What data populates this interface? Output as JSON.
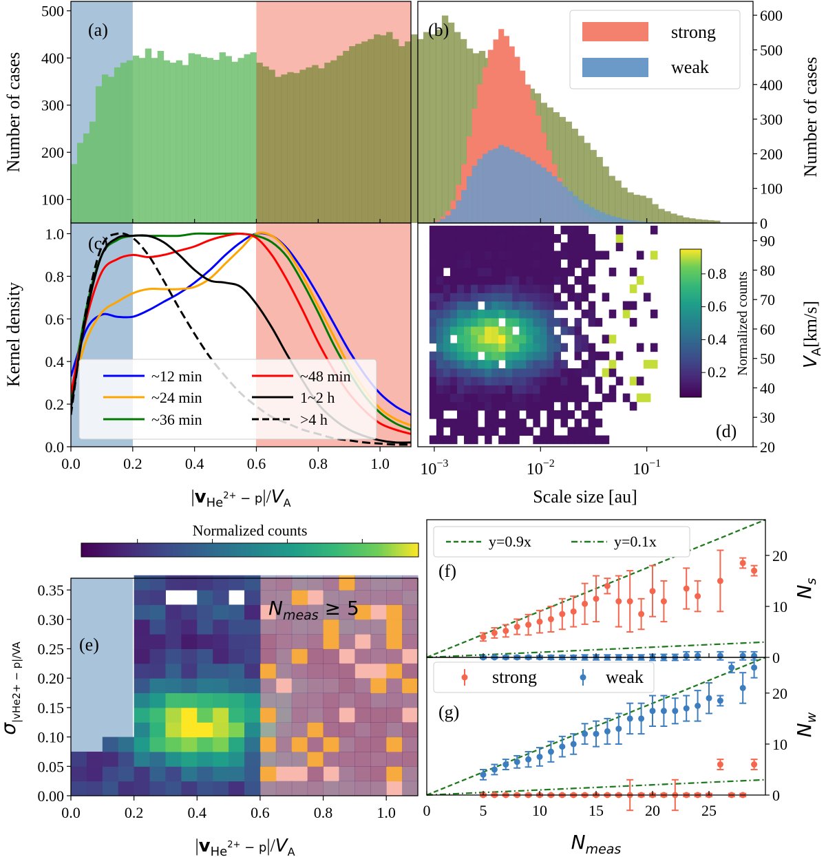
{
  "chart_data": [
    {
      "panel": "(a)",
      "type": "bar",
      "ylabel": "Number of cases",
      "ylim": [
        50,
        520
      ],
      "xlim": [
        0.0,
        1.1
      ],
      "yticks": [
        "100",
        "200",
        "300",
        "400",
        "500"
      ],
      "bin_width": 0.02,
      "shaded_regions": [
        {
          "name": "weak",
          "range": [
            0.0,
            0.2
          ],
          "color": "#a9c3da"
        },
        {
          "name": "strong",
          "range": [
            0.6,
            1.1
          ],
          "color": "#f9b8ad"
        }
      ],
      "values": [
        175,
        220,
        240,
        265,
        340,
        365,
        360,
        380,
        390,
        395,
        405,
        400,
        420,
        400,
        415,
        395,
        390,
        395,
        385,
        410,
        408,
        402,
        400,
        396,
        412,
        404,
        392,
        400,
        408,
        412,
        390,
        382,
        375,
        360,
        365,
        370,
        368,
        375,
        380,
        385,
        378,
        390,
        395,
        405,
        415,
        425,
        430,
        435,
        440,
        450,
        448,
        455,
        440,
        425,
        435,
        450,
        440,
        455,
        450,
        460,
        490,
        475,
        455,
        440,
        420,
        410,
        415,
        400,
        390,
        380,
        370,
        360,
        350,
        340,
        335,
        325,
        305,
        295,
        285,
        275,
        265,
        250,
        235,
        220,
        205,
        190,
        170,
        150,
        140,
        125,
        115,
        110,
        108,
        103,
        90,
        80,
        75,
        70,
        66,
        62,
        60,
        58,
        57,
        56,
        55
      ]
    },
    {
      "panel": "(b)",
      "type": "bar",
      "ylabel": "Number of cases",
      "xlog": true,
      "xlim": [
        0.0007,
        1.0
      ],
      "ylim": [
        0,
        640
      ],
      "yticks": [
        "0",
        "100",
        "200",
        "300",
        "400",
        "500",
        "600"
      ],
      "legend": "top-right",
      "series": [
        {
          "name": "strong",
          "color": "#f4806e",
          "values": [
            2,
            8,
            18,
            35,
            65,
            110,
            170,
            250,
            330,
            400,
            450,
            500,
            530,
            560,
            540,
            510,
            480,
            440,
            400,
            355,
            310,
            260,
            210,
            170,
            130,
            100,
            80,
            58,
            40,
            28,
            18,
            12,
            7,
            4,
            2,
            1,
            1,
            0,
            0,
            0,
            0,
            0,
            0,
            0,
            0,
            0,
            0,
            0,
            0,
            0
          ]
        },
        {
          "name": "weak",
          "color": "#6b9ac8",
          "values": [
            2,
            5,
            12,
            22,
            40,
            65,
            95,
            135,
            165,
            185,
            200,
            210,
            215,
            225,
            220,
            212,
            205,
            198,
            190,
            180,
            170,
            160,
            148,
            135,
            120,
            105,
            92,
            78,
            66,
            55,
            46,
            38,
            31,
            25,
            20,
            16,
            12,
            9,
            7,
            5,
            4,
            3,
            2,
            2,
            1,
            1,
            0,
            0,
            0,
            0
          ]
        }
      ]
    },
    {
      "panel": "(c)",
      "type": "line",
      "ylabel": "Kernel density",
      "xlabel_parts": [
        "|",
        "v",
        "He",
        "2+",
        " − p",
        "|/",
        "V",
        "A"
      ],
      "xlim": [
        0.0,
        1.1
      ],
      "ylim": [
        0.0,
        1.05
      ],
      "xticks": [
        "0.0",
        "0.2",
        "0.4",
        "0.6",
        "0.8",
        "1.0"
      ],
      "yticks": [
        "0.0",
        "0.2",
        "0.4",
        "0.6",
        "0.8",
        "1.0"
      ],
      "x": [
        0.0,
        0.05,
        0.1,
        0.15,
        0.2,
        0.25,
        0.3,
        0.35,
        0.4,
        0.45,
        0.5,
        0.55,
        0.6,
        0.65,
        0.7,
        0.75,
        0.8,
        0.85,
        0.9,
        0.95,
        1.0,
        1.05,
        1.1
      ],
      "series": [
        {
          "name": "~12 min",
          "color": "#0000ff",
          "style": "solid",
          "values": [
            0.33,
            0.55,
            0.62,
            0.61,
            0.61,
            0.64,
            0.68,
            0.72,
            0.77,
            0.83,
            0.9,
            0.96,
            1.0,
            0.99,
            0.93,
            0.83,
            0.71,
            0.58,
            0.45,
            0.34,
            0.25,
            0.19,
            0.15
          ]
        },
        {
          "name": "~24 min",
          "color": "#ffa500",
          "style": "solid",
          "values": [
            0.25,
            0.5,
            0.63,
            0.68,
            0.72,
            0.74,
            0.74,
            0.74,
            0.75,
            0.79,
            0.86,
            0.93,
            1.0,
            0.99,
            0.92,
            0.8,
            0.66,
            0.52,
            0.38,
            0.27,
            0.18,
            0.13,
            0.1
          ]
        },
        {
          "name": "~36 min",
          "color": "#007a00",
          "style": "solid",
          "values": [
            0.23,
            0.65,
            0.9,
            0.97,
            0.99,
            0.99,
            0.99,
            0.99,
            1.0,
            1.0,
            1.0,
            1.0,
            0.99,
            0.96,
            0.89,
            0.77,
            0.63,
            0.48,
            0.35,
            0.24,
            0.16,
            0.11,
            0.08
          ]
        },
        {
          "name": "~48 min",
          "color": "#ff0000",
          "style": "solid",
          "values": [
            0.25,
            0.6,
            0.82,
            0.88,
            0.9,
            0.89,
            0.9,
            0.92,
            0.94,
            0.97,
            0.99,
            1.0,
            0.98,
            0.9,
            0.78,
            0.64,
            0.49,
            0.36,
            0.25,
            0.17,
            0.11,
            0.08,
            0.06
          ]
        },
        {
          "name": "1~2 h",
          "color": "#000000",
          "style": "solid",
          "values": [
            0.18,
            0.62,
            0.9,
            0.98,
            0.99,
            0.99,
            0.96,
            0.9,
            0.83,
            0.78,
            0.77,
            0.75,
            0.67,
            0.56,
            0.43,
            0.31,
            0.2,
            0.13,
            0.08,
            0.05,
            0.03,
            0.02,
            0.02
          ]
        },
        {
          "name": ">4 h",
          "color": "#000000",
          "style": "dashed",
          "values": [
            0.15,
            0.65,
            0.94,
            1.0,
            0.98,
            0.9,
            0.78,
            0.65,
            0.53,
            0.42,
            0.33,
            0.25,
            0.19,
            0.14,
            0.11,
            0.08,
            0.06,
            0.04,
            0.03,
            0.02,
            0.015,
            0.01,
            0.01
          ]
        }
      ],
      "legend": "lower-left"
    },
    {
      "panel": "(d)",
      "type": "heatmap",
      "xlabel": "Scale size [au]",
      "ylabel_parts": [
        "V",
        "A",
        "[km/s]"
      ],
      "xlog": true,
      "xlim": [
        0.0007,
        1.0
      ],
      "ylim": [
        20,
        96
      ],
      "yticks": [
        "20",
        "30",
        "40",
        "50",
        "60",
        "70",
        "80",
        "90"
      ],
      "xticks_base": "10",
      "xticks_exp": [
        "−3",
        "−2",
        "−1"
      ],
      "colorbar_label": "Normalized counts",
      "colorbar_ticks": [
        "0.2",
        "0.4",
        "0.6",
        "0.8"
      ],
      "description": "Normalized counts peak near scale size 0.002-0.006 au and V_A 50-65 km/s"
    },
    {
      "panel": "(e)",
      "type": "heatmap",
      "xlabel_parts": [
        "|",
        "v",
        "He",
        "2+",
        " − p",
        "|/",
        "V",
        "A"
      ],
      "ylabel_parts": [
        "σ",
        "|vHe2+ − p|/VA"
      ],
      "xlim": [
        0.0,
        1.1
      ],
      "ylim": [
        0.0,
        0.37
      ],
      "xticks": [
        "0.0",
        "0.2",
        "0.4",
        "0.6",
        "0.8",
        "1.0"
      ],
      "yticks": [
        "0.00",
        "0.05",
        "0.10",
        "0.15",
        "0.20",
        "0.25",
        "0.30",
        "0.35"
      ],
      "annotation_parts": [
        "N",
        "meas",
        " ≥ 5"
      ],
      "colorbar_label": "Normalized counts",
      "colorbar_ticks": [
        "0.2",
        "0.4",
        "0.6",
        "0.8"
      ]
    },
    {
      "panel": "(f)",
      "type": "scatter",
      "ylabel_parts": [
        "N",
        "s"
      ],
      "xlim": [
        0,
        30
      ],
      "ylim": [
        0,
        27
      ],
      "yticks": [
        "0",
        "10",
        "20"
      ],
      "reference_lines": [
        {
          "name": "y=0.9x",
          "style": "dashed"
        },
        {
          "name": "y=0.1x",
          "style": "dashdot"
        }
      ],
      "x": [
        5,
        6,
        7,
        8,
        9,
        10,
        11,
        12,
        13,
        14,
        15,
        16,
        17,
        18,
        19,
        20,
        21,
        22,
        23,
        24,
        26,
        28,
        29
      ],
      "series": [
        {
          "name": "strong",
          "color": "#f4664e",
          "values": [
            4,
            4.8,
            5.2,
            6,
            6.4,
            7,
            7.5,
            8.5,
            9,
            10.5,
            11.5,
            14,
            11,
            11,
            8.5,
            13,
            11,
            21,
            13.5,
            12,
            15,
            18.5,
            17
          ],
          "err": [
            0.8,
            1,
            1.2,
            1.5,
            2,
            2.2,
            2.5,
            3,
            3,
            4,
            4.5,
            1.5,
            5,
            6,
            3,
            5,
            4,
            0.5,
            4,
            3,
            6,
            1,
            1
          ]
        },
        {
          "name": "weak",
          "color": "#3c7dbf",
          "values": [
            0,
            0,
            0,
            0,
            0,
            0,
            0,
            0,
            0,
            0,
            0,
            0,
            0,
            0,
            0,
            0,
            0,
            0,
            0.3,
            0.3,
            0.3,
            0.3,
            0.3
          ],
          "err": [
            0.2,
            0.2,
            0.3,
            0.3,
            0.3,
            0.3,
            0.4,
            0.4,
            0.4,
            0.5,
            0.5,
            0.5,
            0.5,
            0.5,
            0.5,
            0.6,
            0.6,
            0.6,
            0.8,
            0.8,
            0.8,
            0.8,
            0.8
          ]
        }
      ]
    },
    {
      "panel": "(g)",
      "type": "scatter",
      "xlabel_parts": [
        "N",
        "meas"
      ],
      "ylabel_parts": [
        "N",
        "w"
      ],
      "xlim": [
        0,
        30
      ],
      "ylim": [
        0,
        27
      ],
      "xticks": [
        "0",
        "5",
        "10",
        "15",
        "20",
        "25"
      ],
      "yticks": [
        "0",
        "10",
        "20"
      ],
      "legend": "top-left",
      "x": [
        5,
        6,
        7,
        8,
        9,
        10,
        11,
        12,
        13,
        14,
        15,
        16,
        17,
        18,
        19,
        20,
        21,
        22,
        23,
        24,
        25,
        26,
        27,
        28,
        29
      ],
      "series": [
        {
          "name": "strong",
          "color": "#f4664e",
          "values": [
            0,
            0,
            0,
            0,
            0,
            0,
            0,
            0,
            0,
            0,
            0,
            0,
            0,
            0,
            0,
            0,
            0,
            0,
            0,
            0,
            0,
            6,
            0,
            0,
            6
          ],
          "err": [
            0.2,
            0.2,
            0.2,
            0.2,
            0.2,
            0.2,
            0.2,
            0.2,
            0.2,
            0.2,
            0.2,
            0.2,
            0.2,
            3,
            0.3,
            0.3,
            0.3,
            3,
            0.3,
            0.3,
            0.3,
            1,
            0.3,
            0.3,
            1
          ]
        },
        {
          "name": "weak",
          "color": "#3c7dbf",
          "values": [
            4,
            5,
            6,
            6.5,
            7,
            7.5,
            8.5,
            9.5,
            10,
            12,
            12,
            12.5,
            13,
            15,
            15,
            16.5,
            16.5,
            16.5,
            17,
            17.5,
            19,
            18.5,
            25,
            21,
            25
          ],
          "err": [
            1,
            1,
            1,
            1.2,
            1.5,
            1.8,
            2,
            2,
            2,
            2,
            2.5,
            2.5,
            3,
            3,
            3,
            3,
            3,
            2.5,
            2.5,
            3,
            3,
            1,
            1,
            3,
            2
          ]
        }
      ]
    }
  ],
  "labels": {
    "a": "(a)",
    "b": "(b)",
    "c": "(c)",
    "d": "(d)",
    "e": "(e)",
    "f": "(f)",
    "g": "(g)",
    "number_of_cases": "Number of cases",
    "kernel_density": "Kernel density",
    "scale_size": "Scale size [au]",
    "normalized_counts": "Normalized counts",
    "strong": "strong",
    "weak": "weak",
    "y09": "y=0.9x",
    "y01": "y=0.1x"
  }
}
